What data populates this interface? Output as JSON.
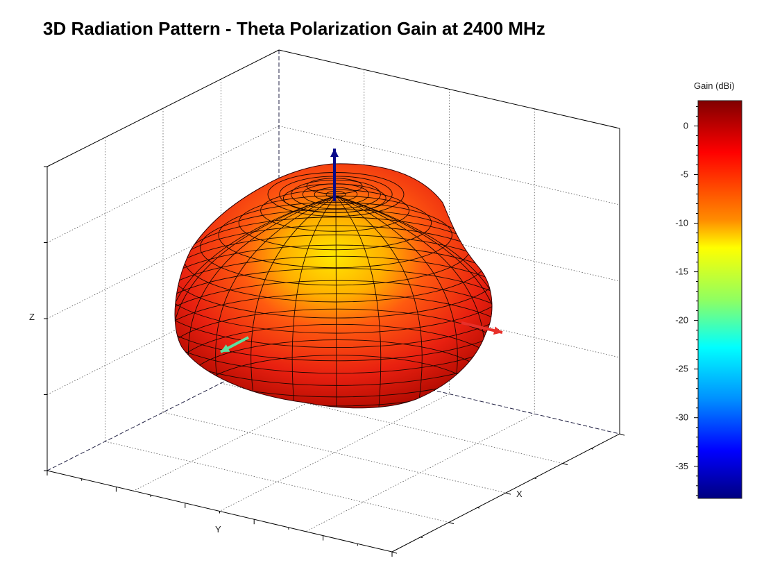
{
  "chart_data": {
    "type": "surface3d",
    "title": "3D Radiation Pattern - Theta Polarization Gain at 2400 MHz",
    "xlabel": "X",
    "ylabel": "Y",
    "zlabel": "Z",
    "grid": true,
    "colorbar": {
      "label": "Gain (dBi)",
      "range": [
        -38.3,
        2.6
      ],
      "ticks": [
        0,
        -5,
        -10,
        -15,
        -20,
        -25,
        -30,
        -35
      ],
      "colormap": "jet",
      "placement": "right"
    },
    "axis_arrows": [
      {
        "axis": "Z",
        "color": "#0a0a8a"
      },
      {
        "axis": "X",
        "color": "#e8302a"
      },
      {
        "axis": "Y",
        "color": "#5ee0a0"
      }
    ],
    "surface_colors": {
      "max": "#c81000",
      "mid": "#ff6a00",
      "low": "#ffe800"
    }
  }
}
